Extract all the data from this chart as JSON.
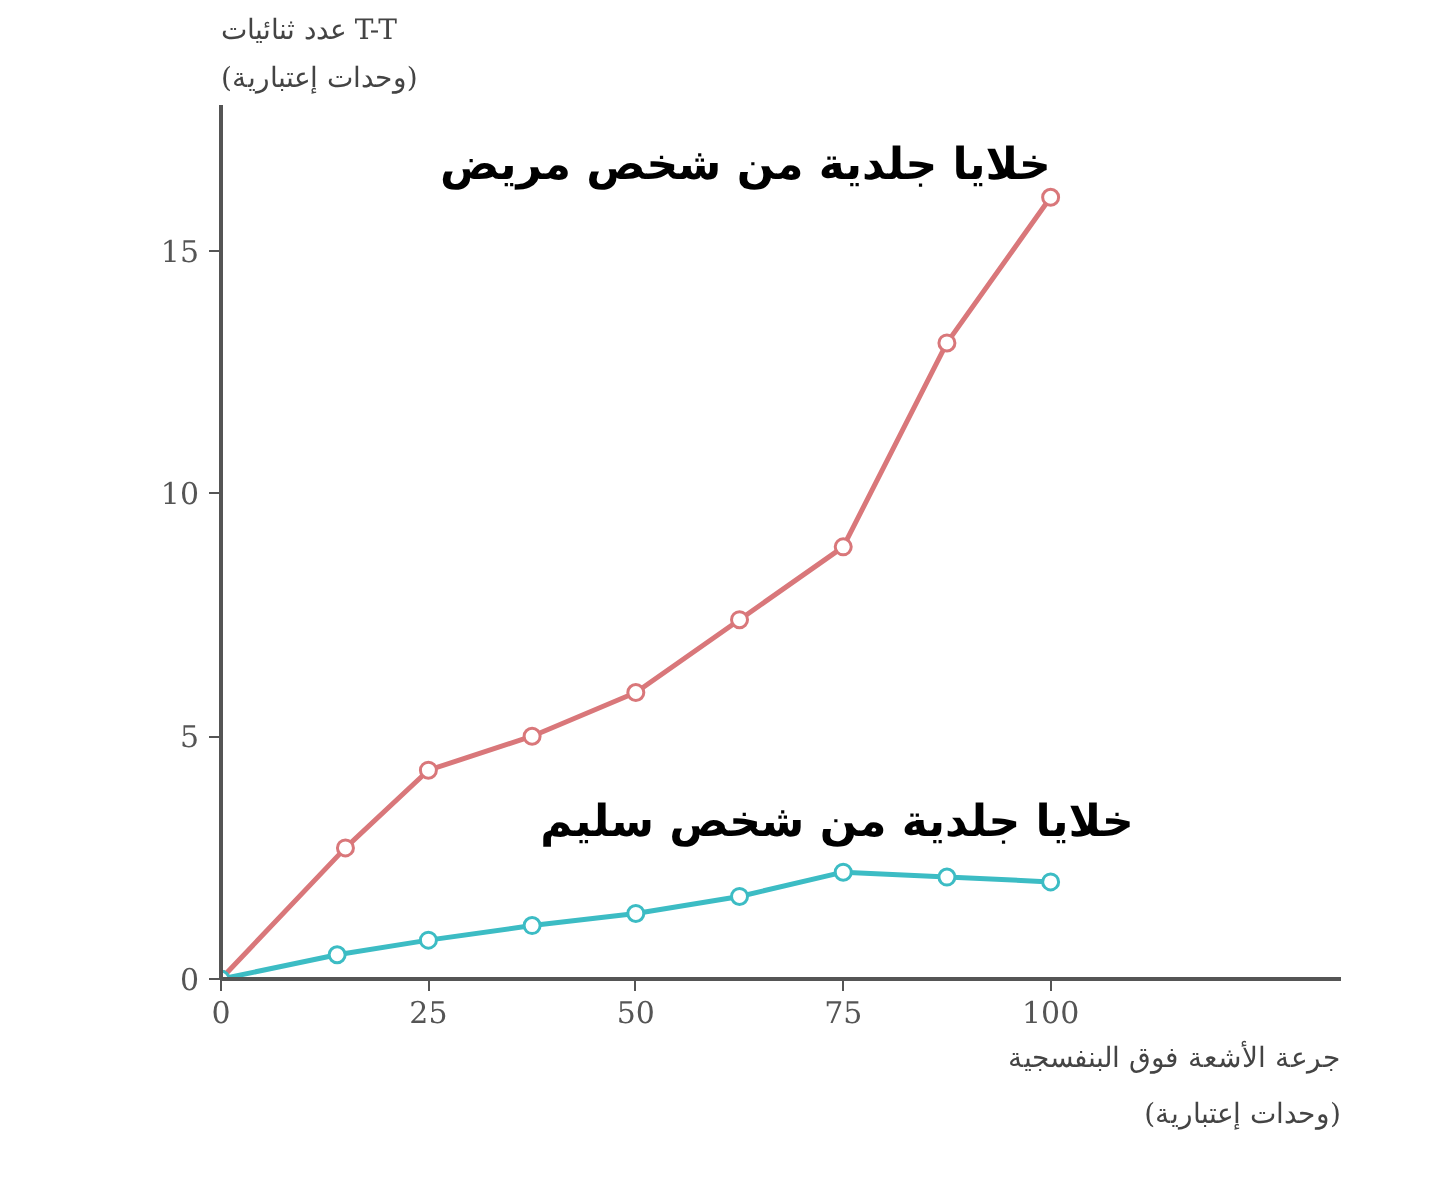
{
  "chart_data": {
    "type": "line",
    "xlabel": "جرعة الأشعة فوق البنفسجية\n(وحدات إعتبارية)",
    "ylabel": "عدد ثنائيات T-T\n(وحدات إعتبارية)",
    "series": [
      {
        "name": "خلايا جلدية من شخص مريض",
        "color": "#d9777a",
        "x": [
          0,
          15,
          25,
          37.5,
          50,
          62.5,
          75,
          87.5,
          100
        ],
        "values": [
          0,
          2.7,
          4.3,
          5.0,
          5.9,
          7.4,
          8.9,
          13.1,
          16.1
        ]
      },
      {
        "name": "خلايا جلدية من شخص سليم",
        "color": "#3cbcc4",
        "x": [
          0,
          14,
          25,
          37.5,
          50,
          62.5,
          75,
          87.5,
          100
        ],
        "values": [
          0,
          0.5,
          0.8,
          1.1,
          1.35,
          1.7,
          2.2,
          2.1,
          2.0
        ]
      }
    ],
    "xlim": [
      0,
      135
    ],
    "ylim": [
      0,
      18
    ],
    "xticks": [
      0,
      25,
      50,
      75,
      100
    ],
    "yticks": [
      0,
      5,
      10,
      15
    ],
    "marker": "circle",
    "line_style": "solid",
    "grid": false,
    "legend": false
  }
}
